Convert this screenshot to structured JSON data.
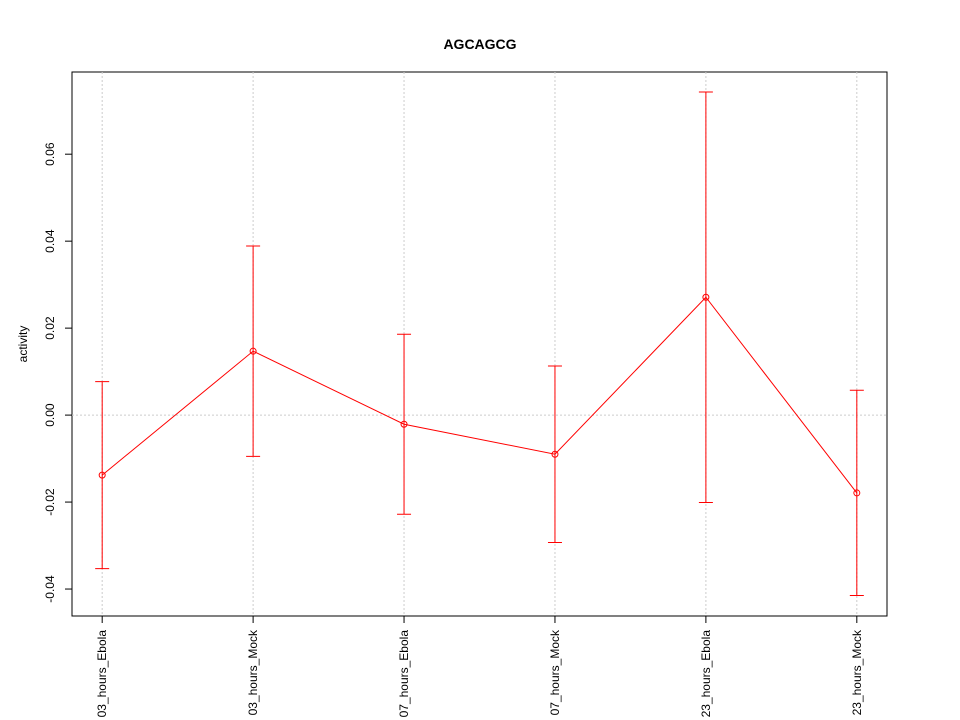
{
  "chart_data": {
    "type": "line",
    "title": "AGCAGCG",
    "ylabel": "activity",
    "categories": [
      "03_hours_Ebola",
      "03_hours_Mock",
      "07_hours_Ebola",
      "07_hours_Mock",
      "23_hours_Ebola",
      "23_hours_Mock"
    ],
    "series": [
      {
        "color": "#ff0000",
        "values": [
          -0.0138,
          0.0147,
          -0.0021,
          -0.009,
          0.0271,
          -0.0179
        ],
        "error": [
          0.0215,
          0.0242,
          0.0207,
          0.0203,
          0.0472,
          0.0236
        ]
      }
    ],
    "ylim": [
      -0.0462,
      0.0789
    ],
    "yticks": [
      {
        "value": -0.04,
        "label": "-0.04"
      },
      {
        "value": -0.02,
        "label": "-0.02"
      },
      {
        "value": 0,
        "label": "0.00"
      },
      {
        "value": 0.02,
        "label": "0.02"
      },
      {
        "value": 0.04,
        "label": "0.04"
      },
      {
        "value": 0.06,
        "label": "0.06"
      }
    ],
    "reference_line": 0,
    "grid": true
  }
}
